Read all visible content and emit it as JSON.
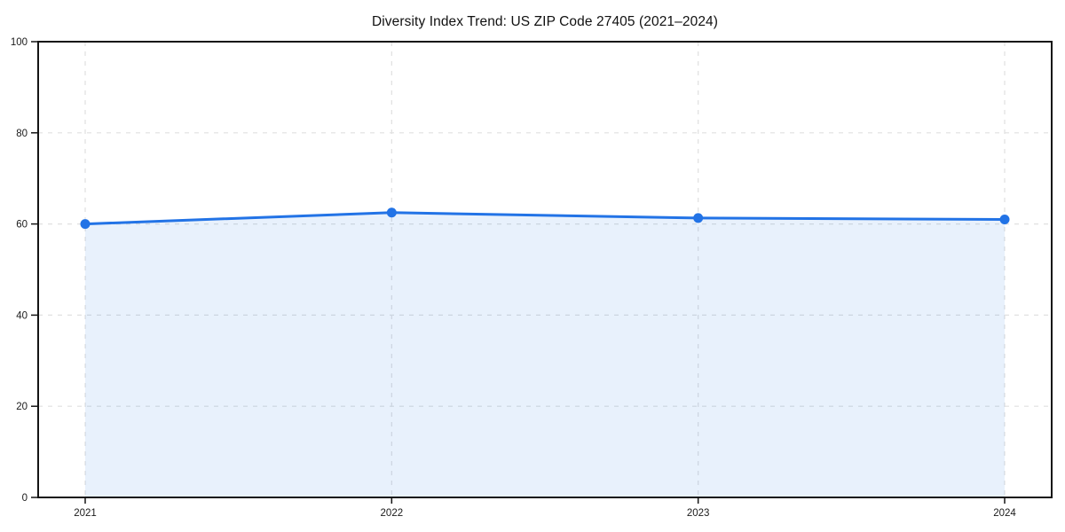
{
  "chart_data": {
    "type": "area",
    "title": "Diversity Index Trend: US ZIP Code 27405 (2021–2024)",
    "x": [
      "2021",
      "2022",
      "2023",
      "2024"
    ],
    "series": [
      {
        "name": "Diversity Index",
        "values": [
          60.0,
          62.5,
          61.3,
          61.0
        ]
      }
    ],
    "xlabel": "",
    "ylabel": "",
    "ylim": [
      0,
      100
    ],
    "yticks": [
      0,
      20,
      40,
      60,
      80,
      100
    ],
    "grid": true,
    "grid_style": "dashed",
    "legend": false,
    "colors": {
      "line": "#2273e6",
      "marker": "#2273e6",
      "fill": "rgba(34,115,230,0.10)",
      "grid": "#e0e0e0",
      "spine": "#141414",
      "tick_label": "#1a1a1a",
      "background": "#ffffff"
    }
  }
}
